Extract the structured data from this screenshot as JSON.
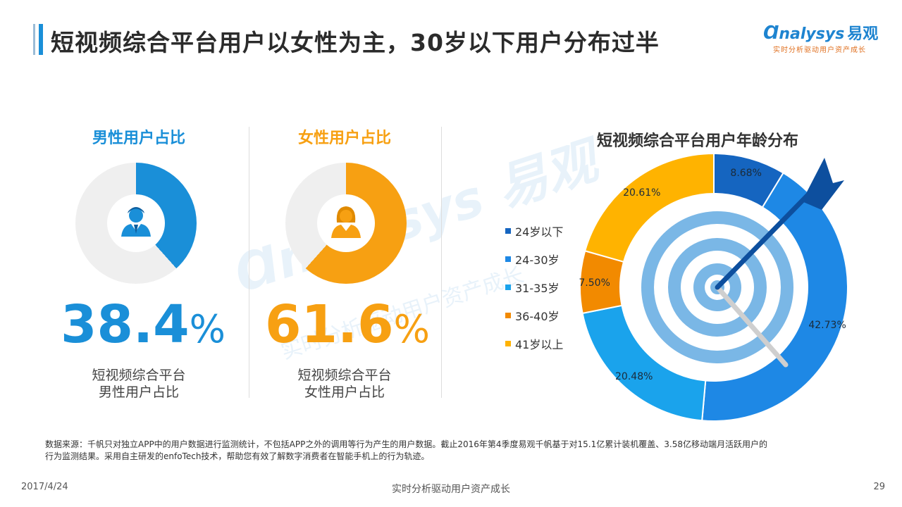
{
  "title": "短视频综合平台用户以女性为主，30岁以下用户分布过半",
  "logo": {
    "brand": "nalysys",
    "brand_cn": "易观",
    "tagline": "实时分析驱动用户资产成长"
  },
  "gender": {
    "male": {
      "heading": "男性用户占比",
      "value": 38.4,
      "value_text": "38.4",
      "percent_sign": "%",
      "caption_line1": "短视频综合平台",
      "caption_line2": "男性用户占比",
      "color": "#1a8fd8",
      "icon": "male-user-icon"
    },
    "female": {
      "heading": "女性用户占比",
      "value": 61.6,
      "value_text": "61.6",
      "percent_sign": "%",
      "caption_line1": "短视频综合平台",
      "caption_line2": "女性用户占比",
      "color": "#f7a012",
      "icon": "female-user-icon"
    },
    "track_color": "#efefef"
  },
  "chart_data": {
    "type": "pie",
    "title": "短视频综合平台用户年龄分布",
    "categories": [
      "24岁以下",
      "24-30岁",
      "31-35岁",
      "36-40岁",
      "41岁以上"
    ],
    "values": [
      8.68,
      42.73,
      20.48,
      7.5,
      20.61
    ],
    "labels": [
      "8.68%",
      "42.73%",
      "20.48%",
      "7.50%",
      "20.61%"
    ],
    "colors": [
      "#1565c0",
      "#1e88e5",
      "#1aa3ec",
      "#f28a00",
      "#ffb300"
    ],
    "legend_position": "left"
  },
  "watermark": {
    "brand": "nalysys 易观",
    "tagline": "实时分析驱动用户资产成长"
  },
  "source_line1": "数据来源：千帆只对独立APP中的用户数据进行监测统计，不包括APP之外的调用等行为产生的用户数据。截止2016年第4季度易观千帆基于对15.1亿累计装机覆盖、3.58亿移动端月活跃用户的",
  "source_line2": "行为监测结果。采用自主研发的enfoTech技术，帮助您有效了解数字消费者在智能手机上的行为轨迹。",
  "footer": {
    "date": "2017/4/24",
    "center": "实时分析驱动用户资产成长",
    "page": "29"
  }
}
